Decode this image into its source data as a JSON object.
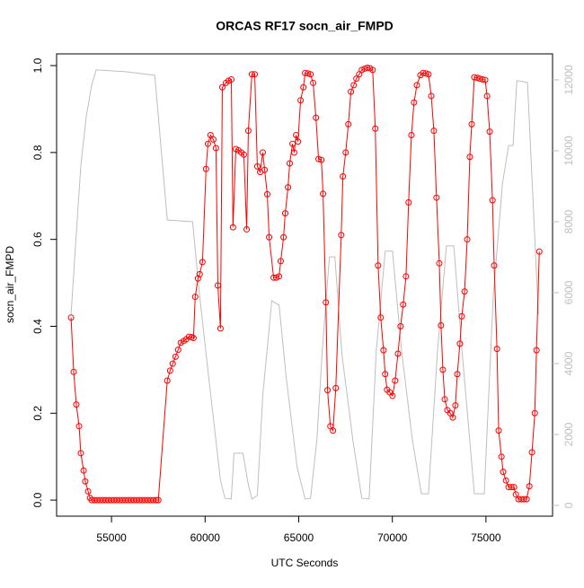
{
  "chart_data": {
    "type": "line",
    "title": "ORCAS RF17 socn_air_FMPD",
    "xlabel": "UTC Seconds",
    "ylabel": "socn_air_FMPD",
    "xlim": [
      52067,
      78558
    ],
    "xticks": [
      55000,
      60000,
      65000,
      70000,
      75000
    ],
    "ylim": [
      -0.037,
      1.027
    ],
    "yticks": [
      {
        "value": 0,
        "label": "0.0"
      },
      0.2,
      0.4,
      0.6,
      0.8,
      {
        "value": 1,
        "label": "1.0"
      }
    ],
    "y2lim": [
      -304,
      12734
    ],
    "y2ticks": [
      0,
      2000,
      4000,
      6000,
      8000,
      10000,
      12000
    ],
    "series": [
      {
        "color": "#bebebe",
        "axis": "y2",
        "markers": false,
        "x": [
          52840,
          53120,
          53360,
          53650,
          53940,
          54180,
          55770,
          57310,
          57980,
          59330,
          59710,
          60190,
          60820,
          61060,
          61400,
          61540,
          62020,
          62310,
          62500,
          62790,
          63080,
          63560,
          63950,
          64330,
          64910,
          65340,
          65630,
          65970,
          66260,
          66640,
          66930,
          67310,
          67890,
          68370,
          68760,
          69140,
          69620,
          70010,
          70490,
          71070,
          71550,
          71930,
          72410,
          72890,
          73280,
          73760,
          74380,
          74910,
          75390,
          75880,
          76210,
          76450,
          76650,
          77220,
          77800
        ],
        "values": [
          5390,
          7670,
          9570,
          10960,
          11850,
          12280,
          12230,
          12130,
          8050,
          8000,
          5900,
          3620,
          710,
          200,
          180,
          1470,
          1470,
          580,
          180,
          280,
          3110,
          5770,
          5650,
          3620,
          1090,
          180,
          200,
          1850,
          4380,
          7010,
          7010,
          4250,
          1850,
          200,
          180,
          4330,
          7170,
          7170,
          4380,
          1850,
          330,
          330,
          4330,
          7320,
          7320,
          4130,
          330,
          330,
          5900,
          9060,
          10150,
          10150,
          11980,
          11930,
          5390
        ]
      },
      {
        "color": "#ff0000",
        "axis": "y",
        "markers": true,
        "x": [
          52840,
          52980,
          53120,
          53270,
          53360,
          53510,
          53600,
          53750,
          53850,
          53940,
          54090,
          54240,
          54390,
          54540,
          54690,
          54840,
          54990,
          55140,
          55290,
          55440,
          55590,
          55740,
          55890,
          56040,
          56190,
          56340,
          56490,
          56640,
          56790,
          56940,
          57090,
          57240,
          57390,
          57500,
          57980,
          58130,
          58270,
          58420,
          58560,
          58700,
          58850,
          58990,
          59140,
          59280,
          59380,
          59470,
          59620,
          59710,
          59860,
          60050,
          60150,
          60290,
          60440,
          60580,
          60680,
          60820,
          60920,
          61110,
          61250,
          61400,
          61490,
          61640,
          61780,
          61930,
          62070,
          62220,
          62310,
          62500,
          62650,
          62790,
          62940,
          63080,
          63180,
          63320,
          63420,
          63660,
          63800,
          63950,
          64040,
          64190,
          64280,
          64430,
          64520,
          64670,
          64760,
          64860,
          64960,
          65100,
          65250,
          65340,
          65490,
          65630,
          65770,
          65920,
          66060,
          66210,
          66300,
          66450,
          66540,
          66690,
          66830,
          66980,
          67270,
          67360,
          67510,
          67650,
          67790,
          67940,
          68080,
          68230,
          68370,
          68520,
          68660,
          68800,
          68950,
          69090,
          69240,
          69380,
          69530,
          69620,
          69720,
          69860,
          70010,
          70150,
          70300,
          70440,
          70580,
          70730,
          70870,
          71020,
          71160,
          71310,
          71500,
          71640,
          71790,
          71930,
          72080,
          72220,
          72360,
          72510,
          72600,
          72700,
          72800,
          72940,
          73090,
          73230,
          73370,
          73470,
          73610,
          73710,
          73860,
          74000,
          74140,
          74240,
          74380,
          74530,
          74670,
          74820,
          74960,
          75060,
          75200,
          75350,
          75440,
          75590,
          75680,
          75830,
          75920,
          76070,
          76210,
          76360,
          76500,
          76600,
          76740,
          76890,
          77030,
          77170,
          77320,
          77460,
          77610,
          77700,
          77850
        ],
        "values": [
          0.42,
          0.295,
          0.22,
          0.17,
          0.108,
          0.068,
          0.043,
          0.02,
          0.005,
          0,
          0,
          0,
          0,
          0,
          0,
          0,
          0,
          0,
          0,
          0,
          0,
          0,
          0,
          0,
          0,
          0,
          0,
          0,
          0,
          0,
          0,
          0,
          0,
          0,
          0.275,
          0.298,
          0.314,
          0.33,
          0.346,
          0.362,
          0.366,
          0.37,
          0.376,
          0.375,
          0.373,
          0.468,
          0.51,
          0.52,
          0.548,
          0.762,
          0.82,
          0.84,
          0.83,
          0.81,
          0.494,
          0.395,
          0.95,
          0.96,
          0.965,
          0.968,
          0.628,
          0.808,
          0.805,
          0.8,
          0.795,
          0.623,
          0.85,
          0.98,
          0.98,
          0.768,
          0.755,
          0.8,
          0.76,
          0.704,
          0.605,
          0.512,
          0.512,
          0.515,
          0.55,
          0.605,
          0.66,
          0.72,
          0.775,
          0.82,
          0.8,
          0.84,
          0.825,
          0.92,
          0.95,
          0.983,
          0.982,
          0.98,
          0.96,
          0.88,
          0.785,
          0.783,
          0.705,
          0.455,
          0.253,
          0.17,
          0.16,
          0.258,
          0.61,
          0.745,
          0.8,
          0.865,
          0.94,
          0.955,
          0.97,
          0.98,
          0.99,
          0.993,
          0.995,
          0.994,
          0.99,
          0.855,
          0.54,
          0.42,
          0.345,
          0.29,
          0.254,
          0.248,
          0.24,
          0.275,
          0.337,
          0.4,
          0.45,
          0.515,
          0.685,
          0.84,
          0.915,
          0.955,
          0.978,
          0.983,
          0.982,
          0.98,
          0.93,
          0.85,
          0.696,
          0.545,
          0.402,
          0.3,
          0.232,
          0.207,
          0.2,
          0.19,
          0.218,
          0.29,
          0.36,
          0.423,
          0.48,
          0.6,
          0.79,
          0.865,
          0.973,
          0.972,
          0.97,
          0.968,
          0.967,
          0.93,
          0.848,
          0.69,
          0.54,
          0.348,
          0.16,
          0.1,
          0.065,
          0.045,
          0.03,
          0.03,
          0.03,
          0.013,
          0.002,
          0.002,
          0.002,
          0.002,
          0.032,
          0.11,
          0.2,
          0.345,
          0.572
        ]
      }
    ]
  }
}
